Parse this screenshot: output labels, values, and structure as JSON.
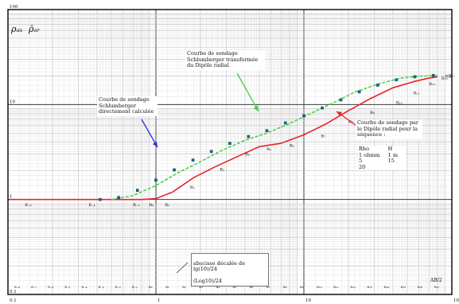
{
  "axis_labels": {
    "y_left_1": "ρₐₛ",
    "y_left_2": "ρ̄ₐᵣ",
    "x_right": "AB/2"
  },
  "annotations": {
    "direct": "Courbe de sondage Schlumberger directement calculée",
    "transformed": "Courbe de sondage Schlumberger transformée du Dipôle radial",
    "dipole": "Courbe de sondage par le Dipôle radial pour la séquence :",
    "shift": "abscisse décalée de lg(10)/24",
    "shift_line2": "(Log10)/24"
  },
  "sequence_table": {
    "headers": [
      "Rho",
      "H"
    ],
    "rows": [
      [
        "1 ohmm",
        "1 m"
      ],
      [
        "5",
        "15"
      ],
      [
        "20",
        ""
      ]
    ]
  },
  "point_labels": [
    "R₋₆",
    "R₋₄",
    "R₋₂",
    "R₀",
    "R₁",
    "R₂",
    "R₃",
    "R₄",
    "R₅",
    "R₆",
    "R₇",
    "R₈",
    "R₉",
    "R₁₀",
    "R₁₁",
    "R₁₂",
    "R₁₃",
    "R₁₄",
    "R₁₅"
  ],
  "bottom_ticks": [
    "e₋₈",
    "e₋₇",
    "e₋₆",
    "e₋₅",
    "e₋₄",
    "e₋₃",
    "e₋₂",
    "e₋₁",
    "e₀",
    "e₁",
    "e₂",
    "e₃",
    "e₄",
    "e₅",
    "e₆",
    "e₇",
    "e₈",
    "e₉",
    "e₁₀",
    "e₁₁",
    "e₁₂",
    "e₁₃",
    "e₁₄",
    "e₁₅",
    "e₁₆",
    "e₁₇"
  ],
  "x_tick_labels": [
    "0.1",
    "1",
    "10",
    "100"
  ],
  "y_tick_labels": [
    "0.1",
    "1",
    "10",
    "100"
  ],
  "colors": {
    "grid_major": "#3a3a3a",
    "grid_minor": "#b8b8b8",
    "red": "#e8222a",
    "green": "#3fcf3f",
    "blue_arrow": "#2a33d6",
    "frame": "#000000"
  },
  "chart_data": {
    "type": "line",
    "x_scale": "log",
    "y_scale": "log",
    "xlim": [
      0.1,
      100
    ],
    "ylim": [
      0.1,
      100
    ],
    "series": [
      {
        "name": "Courbe de sondage par le Dipôle radial",
        "color": "red",
        "x": [
          0.1,
          0.2,
          0.4,
          0.6,
          0.8,
          1.0,
          1.3,
          1.8,
          2.5,
          3.5,
          5.0,
          7.0,
          10.0,
          14.0,
          20.0,
          28.0,
          40.0,
          56.0,
          70.0,
          80.0
        ],
        "y": [
          1.0,
          1.0,
          1.0,
          1.0,
          1.0,
          1.02,
          1.2,
          1.7,
          2.2,
          2.8,
          3.6,
          3.9,
          4.8,
          6.2,
          8.6,
          11.5,
          15.0,
          17.5,
          19.0,
          19.5
        ]
      },
      {
        "name": "Courbe de sondage Schlumberger directement calculée",
        "color": "green",
        "x": [
          0.5,
          0.7,
          1.0,
          1.4,
          2.0,
          2.8,
          4.0,
          5.6,
          8.0,
          11.0,
          16.0,
          22.0,
          32.0,
          45.0,
          63.0,
          80.0
        ],
        "y": [
          1.0,
          1.1,
          1.4,
          1.9,
          2.5,
          3.3,
          4.2,
          5.0,
          6.3,
          8.0,
          10.5,
          13.5,
          16.5,
          19.0,
          20.0,
          20.2
        ]
      },
      {
        "name": "Courbe de sondage Schlumberger transformée du Dipôle radial",
        "color": "blue",
        "x": [
          0.42,
          0.56,
          0.75,
          1.0,
          1.33,
          1.78,
          2.37,
          3.16,
          4.22,
          5.62,
          7.5,
          10.0,
          13.3,
          17.8,
          23.7,
          31.6,
          42.2,
          56.2,
          75.0
        ],
        "y": [
          1.0,
          1.05,
          1.25,
          1.6,
          2.05,
          2.6,
          3.2,
          3.9,
          4.6,
          5.3,
          6.4,
          7.6,
          9.2,
          11.2,
          13.6,
          16.0,
          18.2,
          19.6,
          20.2
        ]
      }
    ]
  }
}
